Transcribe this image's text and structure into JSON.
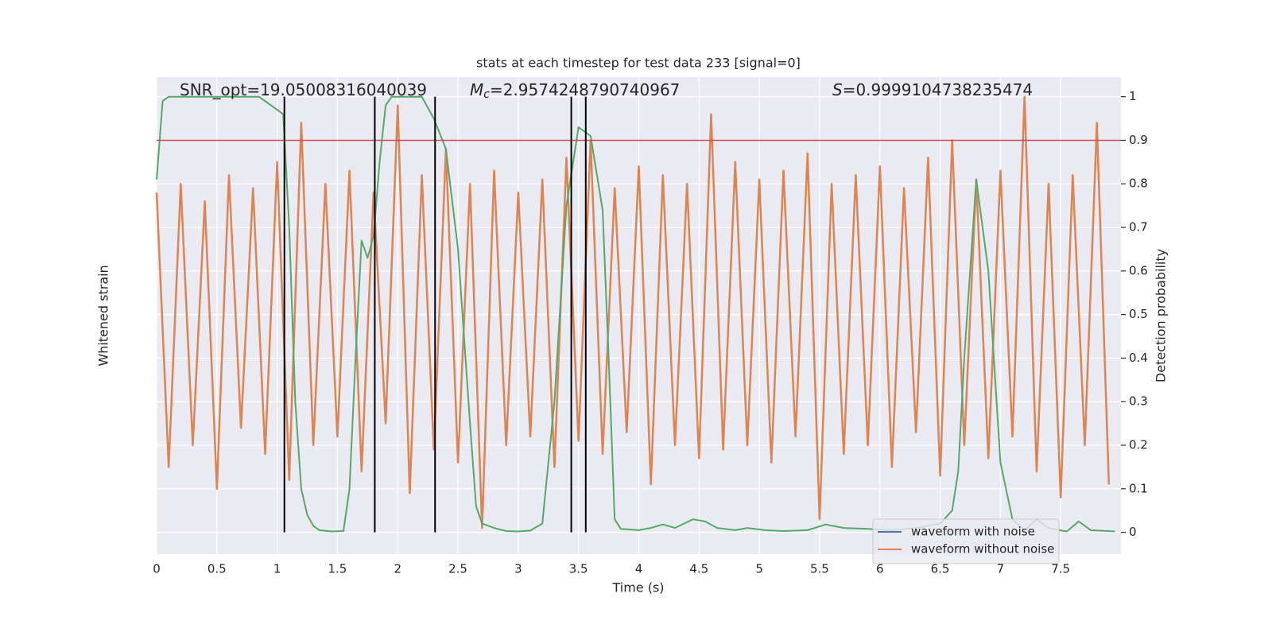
{
  "chart_data": {
    "type": "line",
    "title": "stats at each timestep for test data 233 [signal=0]",
    "xlabel": "Time (s)",
    "ylabel": "Whitened strain",
    "y2label": "Detection probability",
    "annotations": [
      {
        "text": "SNR_opt=19.05008316040039"
      },
      {
        "symbol": "M",
        "subscript": "c",
        "text": "=2.9574248790740967"
      },
      {
        "symbol": "S",
        "text": "=0.9999104738235474"
      }
    ],
    "xlim": [
      0,
      8.0
    ],
    "xticks": [
      0.0,
      0.5,
      1.0,
      1.5,
      2.0,
      2.5,
      3.0,
      3.5,
      4.0,
      4.5,
      5.0,
      5.5,
      6.0,
      6.5,
      7.0,
      7.5
    ],
    "ylim": [
      -0.05,
      1.045
    ],
    "yticks": [
      0.0,
      0.1,
      0.2,
      0.3,
      0.4,
      0.5,
      0.6,
      0.7,
      0.8,
      0.9,
      1.0
    ],
    "grid": true,
    "background": "#eaeaf2",
    "threshold": {
      "value": 0.9,
      "color": "#c44e52"
    },
    "event_lines": {
      "x": [
        1.06,
        1.81,
        2.31,
        3.44,
        3.56
      ],
      "ymin": 0.0,
      "ymax": 1.0,
      "color": "#000000"
    },
    "series": [
      {
        "name": "waveform with noise",
        "color": "#4c72b0",
        "x": [],
        "values": []
      },
      {
        "name": "waveform without noise",
        "color": "#dd8452",
        "x": [
          0,
          0.1,
          0.2,
          0.3,
          0.4,
          0.5,
          0.6,
          0.7,
          0.8,
          0.9,
          1.0,
          1.1,
          1.2,
          1.3,
          1.4,
          1.5,
          1.6,
          1.7,
          1.8,
          1.9,
          2.0,
          2.1,
          2.2,
          2.3,
          2.4,
          2.5,
          2.6,
          2.7,
          2.8,
          2.9,
          3.0,
          3.1,
          3.2,
          3.3,
          3.4,
          3.5,
          3.6,
          3.7,
          3.8,
          3.9,
          4.0,
          4.1,
          4.2,
          4.3,
          4.4,
          4.5,
          4.6,
          4.7,
          4.8,
          4.9,
          5.0,
          5.1,
          5.2,
          5.3,
          5.4,
          5.5,
          5.6,
          5.7,
          5.8,
          5.9,
          6.0,
          6.1,
          6.2,
          6.3,
          6.4,
          6.5,
          6.6,
          6.7,
          6.8,
          6.9,
          7.0,
          7.1,
          7.2,
          7.3,
          7.4,
          7.5,
          7.6,
          7.7,
          7.8,
          7.9
        ],
        "values": [
          0.78,
          0.15,
          0.8,
          0.2,
          0.76,
          0.1,
          0.82,
          0.24,
          0.79,
          0.18,
          0.85,
          0.12,
          0.94,
          0.2,
          0.8,
          0.22,
          0.83,
          0.14,
          0.78,
          0.25,
          0.98,
          0.09,
          0.82,
          0.19,
          0.88,
          0.16,
          0.8,
          0.01,
          0.83,
          0.2,
          0.78,
          0.22,
          0.81,
          0.15,
          0.86,
          0.21,
          0.9,
          0.18,
          0.79,
          0.23,
          0.84,
          0.11,
          0.82,
          0.2,
          0.8,
          0.17,
          0.96,
          0.19,
          0.85,
          0.2,
          0.81,
          0.16,
          0.83,
          0.22,
          0.87,
          0.03,
          0.8,
          0.18,
          0.82,
          0.2,
          0.84,
          0.15,
          0.79,
          0.23,
          0.86,
          0.13,
          0.9,
          0.2,
          0.81,
          0.17,
          0.83,
          0.22,
          1.0,
          0.14,
          0.8,
          0.08,
          0.82,
          0.2,
          0.94,
          0.11
        ]
      },
      {
        "name": "detection probability",
        "color": "#55a868",
        "x": [
          0.0,
          0.05,
          0.1,
          0.3,
          0.5,
          0.7,
          0.85,
          0.95,
          1.05,
          1.1,
          1.15,
          1.2,
          1.25,
          1.3,
          1.35,
          1.45,
          1.55,
          1.6,
          1.65,
          1.7,
          1.75,
          1.8,
          1.85,
          1.9,
          1.95,
          2.05,
          2.2,
          2.3,
          2.4,
          2.5,
          2.6,
          2.65,
          2.7,
          2.8,
          2.9,
          3.0,
          3.1,
          3.2,
          3.3,
          3.4,
          3.5,
          3.6,
          3.7,
          3.75,
          3.8,
          3.85,
          4.0,
          4.1,
          4.2,
          4.3,
          4.45,
          4.55,
          4.65,
          4.8,
          4.9,
          5.05,
          5.2,
          5.4,
          5.55,
          5.7,
          5.9,
          6.1,
          6.3,
          6.5,
          6.6,
          6.65,
          6.7,
          6.8,
          6.9,
          7.0,
          7.1,
          7.2,
          7.3,
          7.4,
          7.55,
          7.65,
          7.75,
          7.95
        ],
        "values": [
          0.81,
          0.99,
          1.0,
          1.0,
          1.0,
          1.0,
          1.0,
          0.98,
          0.96,
          0.7,
          0.3,
          0.1,
          0.04,
          0.015,
          0.005,
          0.002,
          0.003,
          0.1,
          0.4,
          0.67,
          0.63,
          0.68,
          0.85,
          0.98,
          1.0,
          1.0,
          1.0,
          0.95,
          0.88,
          0.65,
          0.25,
          0.06,
          0.02,
          0.01,
          0.003,
          0.002,
          0.004,
          0.02,
          0.3,
          0.75,
          0.93,
          0.91,
          0.74,
          0.4,
          0.03,
          0.008,
          0.005,
          0.01,
          0.018,
          0.01,
          0.03,
          0.025,
          0.01,
          0.005,
          0.01,
          0.005,
          0.003,
          0.005,
          0.018,
          0.01,
          0.008,
          0.005,
          0.01,
          0.02,
          0.05,
          0.14,
          0.4,
          0.81,
          0.6,
          0.16,
          0.03,
          0.005,
          0.03,
          0.01,
          0.002,
          0.025,
          0.005,
          0.002
        ]
      }
    ],
    "legend": {
      "loc": "lower right"
    }
  }
}
